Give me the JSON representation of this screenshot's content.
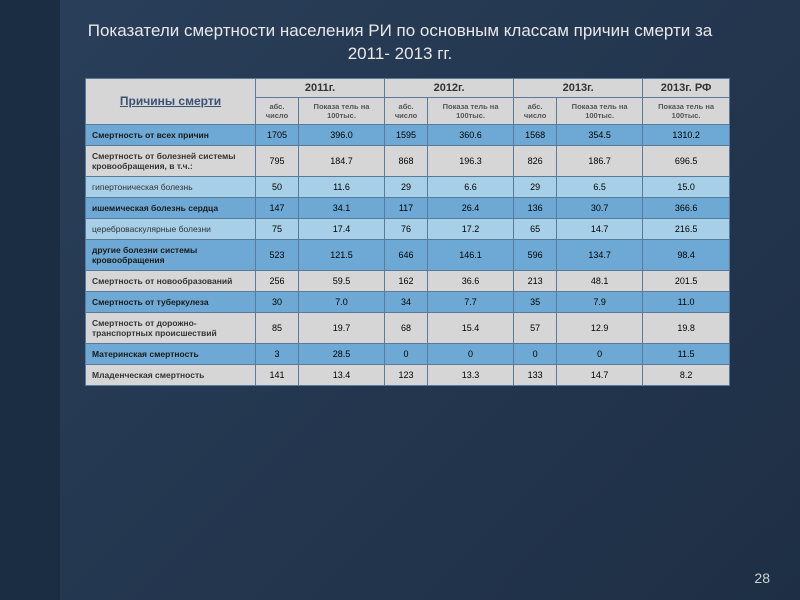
{
  "title": "Показатели смертности населения РИ по основным классам причин смерти за 2011- 2013 гг.",
  "page_number": "28",
  "table": {
    "cause_header": "Причины смерти",
    "year_headers": [
      "2011г.",
      "2012г.",
      "2013г.",
      "2013г. РФ"
    ],
    "sub_headers": {
      "abs": "абс. число",
      "rate": "Показа тель на 100тыс."
    },
    "rows": [
      {
        "style": "blue",
        "label": "Смертность от всех причин",
        "cells": [
          "1705",
          "396.0",
          "1595",
          "360.6",
          "1568",
          "354.5",
          "1310.2"
        ]
      },
      {
        "style": "gray",
        "label": "Смертность от болезней системы кровообращения, в т.ч.:",
        "cells": [
          "795",
          "184.7",
          "868",
          "196.3",
          "826",
          "186.7",
          "696.5"
        ]
      },
      {
        "style": "lightblue",
        "label": "гипертоническая болезнь",
        "cells": [
          "50",
          "11.6",
          "29",
          "6.6",
          "29",
          "6.5",
          "15.0"
        ]
      },
      {
        "style": "blue",
        "label": "ишемическая болезнь сердца",
        "cells": [
          "147",
          "34.1",
          "117",
          "26.4",
          "136",
          "30.7",
          "366.6"
        ]
      },
      {
        "style": "lightblue",
        "label": "цереброваскулярные болезни",
        "cells": [
          "75",
          "17.4",
          "76",
          "17.2",
          "65",
          "14.7",
          "216.5"
        ]
      },
      {
        "style": "blue",
        "label": "другие болезни системы кровообращения",
        "cells": [
          "523",
          "121.5",
          "646",
          "146.1",
          "596",
          "134.7",
          "98.4"
        ]
      },
      {
        "style": "gray",
        "label": "Смертность от новообразований",
        "cells": [
          "256",
          "59.5",
          "162",
          "36.6",
          "213",
          "48.1",
          "201.5"
        ]
      },
      {
        "style": "blue",
        "label": "Смертность от туберкулеза",
        "cells": [
          "30",
          "7.0",
          "34",
          "7.7",
          "35",
          "7.9",
          "11.0"
        ]
      },
      {
        "style": "gray",
        "label": "Смертность от дорожно-транспортных происшествий",
        "cells": [
          "85",
          "19.7",
          "68",
          "15.4",
          "57",
          "12.9",
          "19.8"
        ]
      },
      {
        "style": "blue",
        "label": "Материнская смертность",
        "cells": [
          "3",
          "28.5",
          "0",
          "0",
          "0",
          "0",
          "11.5"
        ]
      },
      {
        "style": "gray",
        "label": "Младенческая смертность",
        "cells": [
          "141",
          "13.4",
          "123",
          "13.3",
          "133",
          "14.7",
          "8.2"
        ]
      }
    ]
  },
  "colors": {
    "background_gradient_start": "#2a3f5a",
    "background_gradient_end": "#1e2f45",
    "accent_bar": "#1a2d42",
    "row_blue": "#6da9d4",
    "row_lightblue": "#a7cfe7",
    "row_gray": "#d6d6d6",
    "border": "#5a7a99",
    "title_text": "#e8e8e8"
  }
}
